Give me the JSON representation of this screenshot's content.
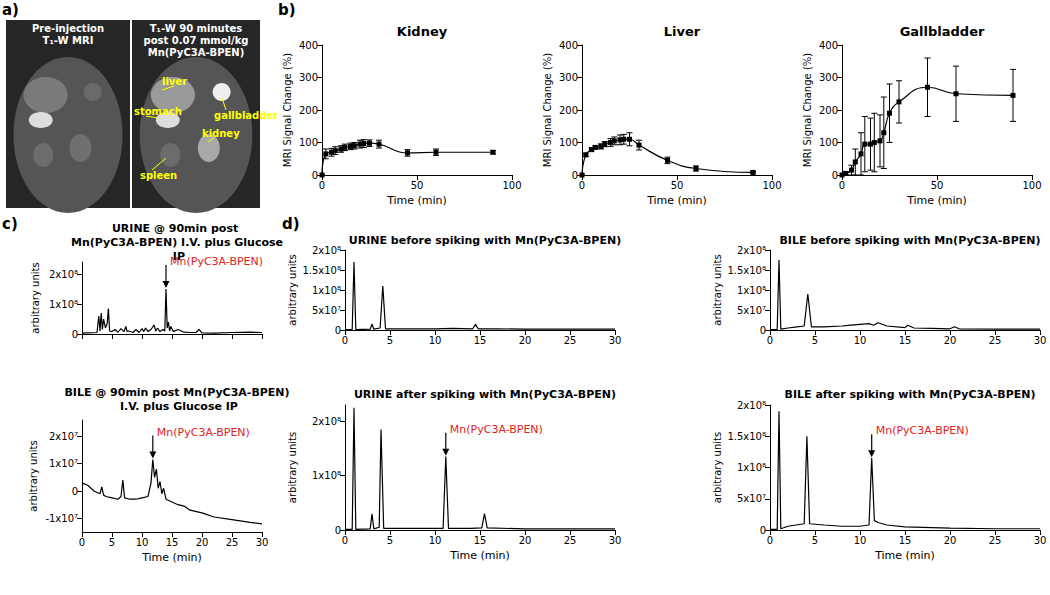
{
  "panel_labels": [
    "a)",
    "b)",
    "c)",
    "d)"
  ],
  "image": {
    "panels": [
      {
        "title_lines": [
          "Pre-injection",
          "T₁-W MRI"
        ]
      },
      {
        "title_lines": [
          "T₁-W 90 minutes",
          "post 0.07 mmol/kg",
          "Mn(PyC3A-BPEN)"
        ],
        "labels": [
          "liver",
          "stomach",
          "gallbladder",
          "kidney",
          "spleen"
        ]
      }
    ]
  },
  "chart_data": [
    {
      "type": "line",
      "title": "Kidney",
      "xlabel": "Time (min)",
      "ylabel": "MRI Signal Change (%)",
      "x": [
        0,
        2,
        5,
        7,
        10,
        12,
        15,
        17,
        20,
        22,
        25,
        30,
        45,
        60,
        90
      ],
      "values": [
        0,
        65,
        70,
        75,
        80,
        85,
        88,
        90,
        95,
        97,
        98,
        95,
        68,
        70,
        70
      ],
      "errors": [
        0,
        15,
        12,
        12,
        10,
        10,
        10,
        10,
        12,
        12,
        10,
        12,
        10,
        10,
        5
      ],
      "color": "#000000",
      "marker": "square",
      "line_style": "smooth",
      "grid": false,
      "xlim": [
        0,
        100
      ],
      "xticks": [
        0,
        50,
        100
      ],
      "ylim": [
        0,
        400
      ],
      "yticks": [
        0,
        100,
        200,
        300,
        400
      ]
    },
    {
      "type": "line",
      "title": "Liver",
      "xlabel": "Time (min)",
      "ylabel": "MRI Signal Change (%)",
      "x": [
        0,
        2,
        5,
        7,
        10,
        12,
        15,
        17,
        20,
        22,
        25,
        30,
        45,
        60,
        90
      ],
      "values": [
        0,
        62,
        78,
        85,
        88,
        95,
        100,
        105,
        108,
        110,
        110,
        92,
        45,
        20,
        8
      ],
      "errors": [
        0,
        5,
        5,
        5,
        8,
        8,
        12,
        12,
        15,
        15,
        20,
        15,
        10,
        8,
        3
      ],
      "color": "#000000",
      "marker": "square",
      "line_style": "smooth",
      "grid": false,
      "xlim": [
        0,
        100
      ],
      "xticks": [
        0,
        50,
        100
      ],
      "ylim": [
        0,
        400
      ],
      "yticks": [
        0,
        100,
        200,
        300,
        400
      ]
    },
    {
      "type": "line",
      "title": "Gallbladder",
      "xlabel": "Time (min)",
      "ylabel": "MRI Signal Change (%)",
      "x": [
        0,
        2,
        5,
        7,
        10,
        12,
        15,
        17,
        20,
        22,
        25,
        30,
        45,
        60,
        90
      ],
      "values": [
        0,
        5,
        15,
        40,
        65,
        95,
        95,
        100,
        105,
        130,
        190,
        225,
        270,
        250,
        245
      ],
      "errors": [
        0,
        5,
        15,
        40,
        65,
        85,
        80,
        90,
        80,
        110,
        90,
        65,
        90,
        85,
        80
      ],
      "color": "#000000",
      "marker": "square",
      "line_style": "smooth",
      "grid": false,
      "xlim": [
        0,
        100
      ],
      "xticks": [
        0,
        50,
        100
      ],
      "ylim": [
        0,
        400
      ],
      "yticks": [
        0,
        100,
        200,
        300,
        400
      ]
    },
    {
      "type": "line",
      "title": "URINE @ 90min post Mn(PyC3A-BPEN) I.V. plus Glucose IP",
      "ylabel": "arbitrary units",
      "x": [
        0,
        2.5,
        2.8,
        3.0,
        3.2,
        3.4,
        3.6,
        3.9,
        4.2,
        4.4,
        4.6,
        5,
        5.5,
        6,
        6.5,
        7,
        7.3,
        7.5,
        7.8,
        8.5,
        9,
        9.5,
        10,
        10.3,
        10.6,
        11,
        11.5,
        12,
        12.3,
        12.6,
        13,
        13.5,
        13.8,
        14,
        14.2,
        14.4,
        14.6,
        14.8,
        15.2,
        16,
        17,
        18,
        19,
        19.5,
        20,
        22,
        25,
        28,
        30
      ],
      "values": [
        3000000.0,
        5000000.0,
        60000000.0,
        10000000.0,
        70000000.0,
        15000000.0,
        50000000.0,
        20000000.0,
        35000000.0,
        85000000.0,
        10000000.0,
        8000000.0,
        15000000.0,
        6000000.0,
        18000000.0,
        8000000.0,
        25000000.0,
        9000000.0,
        10000000.0,
        5000000.0,
        15000000.0,
        5000000.0,
        18000000.0,
        8000000.0,
        20000000.0,
        8000000.0,
        15000000.0,
        30000000.0,
        10000000.0,
        20000000.0,
        8000000.0,
        15000000.0,
        10000000.0,
        150000000.0,
        20000000.0,
        40000000.0,
        10000000.0,
        25000000.0,
        8000000.0,
        15000000.0,
        6000000.0,
        5000000.0,
        5000000.0,
        15000000.0,
        4000000.0,
        3000000.0,
        5000000.0,
        6000000.0,
        5000000.0
      ],
      "color": "#000000",
      "marker": "none",
      "line_style": "solid",
      "grid": false,
      "tick_labels": "y",
      "xlim": [
        0,
        30
      ],
      "xticks": [
        0,
        5,
        10,
        15,
        20,
        25,
        30
      ],
      "ylim": [
        0,
        240000000.0
      ],
      "yticks": [
        0,
        {
          "value": 100000000.0,
          "label": "1x10⁸"
        },
        {
          "value": 200000000.0,
          "label": "2x10⁸"
        }
      ],
      "annotations": [
        {
          "text": "Mn(PyC3A-BPEN)",
          "x": 14,
          "y": 150000000.0,
          "color": "#e3211c"
        }
      ]
    },
    {
      "type": "line",
      "title": "BILE @ 90min post Mn(PyC3A-BPEN) I.V. plus Glucose IP",
      "xlabel": "Time (min)",
      "ylabel": "arbitrary units",
      "x": [
        0,
        1,
        2,
        3,
        3.3,
        3.6,
        4,
        5,
        6,
        6.5,
        6.8,
        7.1,
        8,
        9,
        10,
        11,
        11.5,
        11.8,
        12.1,
        12.4,
        12.7,
        13,
        13.3,
        13.6,
        14,
        15,
        16,
        17,
        18,
        20,
        22,
        25,
        28,
        30
      ],
      "values": [
        3000000.0,
        2000000.0,
        0,
        -1000000.0,
        1500000.0,
        -1500000.0,
        -2000000.0,
        -2500000.0,
        -3000000.0,
        -2000000.0,
        4000000.0,
        -2500000.0,
        -3000000.0,
        -3000000.0,
        -2500000.0,
        -2000000.0,
        3000000.0,
        11500000.0,
        5000000.0,
        8000000.0,
        1000000.0,
        3500000.0,
        -1000000.0,
        1000000.0,
        -3000000.0,
        -4000000.0,
        -5000000.0,
        -5500000.0,
        -7000000.0,
        -8000000.0,
        -9500000.0,
        -10500000.0,
        -11500000.0,
        -12000000.0
      ],
      "color": "#000000",
      "marker": "none",
      "line_style": "solid",
      "grid": false,
      "xlim": [
        0,
        30
      ],
      "xticks": [
        0,
        5,
        10,
        15,
        20,
        25,
        30
      ],
      "ylim": [
        -15000000.0,
        26000000.0
      ],
      "yticks": [
        {
          "value": -10000000.0,
          "label": "-1x10⁷"
        },
        0,
        {
          "value": 10000000.0,
          "label": "1x10⁷"
        },
        {
          "value": 20000000.0,
          "label": "2x10⁷"
        }
      ],
      "annotations": [
        {
          "text": "Mn(PyC3A-BPEN)",
          "x": 11.8,
          "y": 11500000.0,
          "color": "#e3211c"
        }
      ]
    },
    {
      "type": "line",
      "title": "URINE before spiking with Mn(PyC3A-BPEN)",
      "ylabel": "arbitrary units",
      "x": [
        0,
        0.8,
        1,
        1.2,
        2.8,
        3,
        3.2,
        3.9,
        4.2,
        4.5,
        8,
        10,
        12,
        14.2,
        14.5,
        14.8,
        17,
        20,
        25,
        30
      ],
      "values": [
        1000000.0,
        1000000.0,
        170000000.0,
        1000000.0,
        2000000.0,
        15000000.0,
        2000000.0,
        5000000.0,
        110000000.0,
        3000000.0,
        3000000.0,
        3000000.0,
        4000000.0,
        3000000.0,
        14000000.0,
        3000000.0,
        3000000.0,
        2000000.0,
        2000000.0,
        2000000.0
      ],
      "color": "#000000",
      "marker": "none",
      "line_style": "solid",
      "grid": false,
      "xlim": [
        0,
        30
      ],
      "xticks": [
        0,
        5,
        10,
        15,
        20,
        25,
        30
      ],
      "ylim": [
        0,
        200000000.0
      ],
      "yticks": [
        0,
        {
          "value": 50000000.0,
          "label": "5x10⁷"
        },
        {
          "value": 100000000.0,
          "label": "1x10⁸"
        },
        {
          "value": 150000000.0,
          "label": "1.5x10⁸"
        },
        {
          "value": 200000000.0,
          "label": "2x10⁸"
        }
      ]
    },
    {
      "type": "line",
      "title": "URINE after spiking with Mn(PyC3A-BPEN)",
      "xlabel": "Time (min)",
      "ylabel": "arbitrary units",
      "x": [
        0,
        0.8,
        1,
        1.2,
        2.8,
        3,
        3.2,
        3.8,
        4,
        4.3,
        8,
        10.9,
        11.2,
        11.5,
        14,
        15.2,
        15.5,
        15.8,
        20,
        25,
        30
      ],
      "values": [
        1000000.0,
        1000000.0,
        225000000.0,
        1000000.0,
        2000000.0,
        30000000.0,
        2000000.0,
        5000000.0,
        185000000.0,
        3000000.0,
        3000000.0,
        3000000.0,
        135000000.0,
        3000000.0,
        3000000.0,
        4000000.0,
        30000000.0,
        4000000.0,
        2000000.0,
        2000000.0,
        2000000.0
      ],
      "color": "#000000",
      "marker": "none",
      "line_style": "solid",
      "grid": false,
      "xlim": [
        0,
        30
      ],
      "xticks": [
        0,
        5,
        10,
        15,
        20,
        25,
        30
      ],
      "ylim": [
        0,
        230000000.0
      ],
      "yticks": [
        0,
        {
          "value": 100000000.0,
          "label": "1x10⁸"
        },
        {
          "value": 200000000.0,
          "label": "2x10⁸"
        }
      ],
      "annotations": [
        {
          "text": "Mn(PyC3A-BPEN)",
          "x": 11.2,
          "y": 135000000.0,
          "color": "#e3211c"
        }
      ]
    },
    {
      "type": "line",
      "title": "BILE before spiking with Mn(PyC3A-BPEN)",
      "ylabel": "arbitrary units",
      "x": [
        0,
        0.8,
        1,
        1.2,
        2,
        3,
        3.8,
        4.2,
        4.6,
        6,
        8,
        9,
        10,
        11,
        11.5,
        12,
        13,
        15,
        15.3,
        16,
        18,
        20,
        20.5,
        21,
        25,
        30
      ],
      "values": [
        1000000.0,
        1000000.0,
        175000000.0,
        2000000.0,
        5000000.0,
        8000000.0,
        10000000.0,
        90000000.0,
        8000000.0,
        8000000.0,
        10000000.0,
        12000000.0,
        14000000.0,
        16000000.0,
        12000000.0,
        18000000.0,
        10000000.0,
        6000000.0,
        12000000.0,
        5000000.0,
        4000000.0,
        3000000.0,
        8000000.0,
        3000000.0,
        2000000.0,
        2000000.0
      ],
      "color": "#000000",
      "marker": "none",
      "line_style": "solid",
      "grid": false,
      "xlim": [
        0,
        30
      ],
      "xticks": [
        0,
        5,
        10,
        15,
        20,
        25,
        30
      ],
      "ylim": [
        0,
        200000000.0
      ],
      "yticks": [
        0,
        {
          "value": 50000000.0,
          "label": "5x10⁷"
        },
        {
          "value": 100000000.0,
          "label": "1x10⁸"
        },
        {
          "value": 150000000.0,
          "label": "1.5x10⁸"
        },
        {
          "value": 200000000.0,
          "label": "2x10⁸"
        }
      ]
    },
    {
      "type": "line",
      "title": "BILE after spiking with Mn(PyC3A-BPEN)",
      "xlabel": "Time (min)",
      "ylabel": "arbitrary units",
      "x": [
        0,
        0.8,
        1,
        1.2,
        2,
        3.8,
        4.1,
        4.4,
        6,
        8,
        10,
        11,
        11.3,
        11.6,
        12,
        13,
        15,
        20,
        25,
        30
      ],
      "values": [
        1000000.0,
        1000000.0,
        190000000.0,
        2000000.0,
        6000000.0,
        10000000.0,
        150000000.0,
        10000000.0,
        8000000.0,
        6000000.0,
        6000000.0,
        8000000.0,
        115000000.0,
        15000000.0,
        12000000.0,
        8000000.0,
        5000000.0,
        3000000.0,
        2000000.0,
        2000000.0
      ],
      "color": "#000000",
      "marker": "none",
      "line_style": "solid",
      "grid": false,
      "xlim": [
        0,
        30
      ],
      "xticks": [
        0,
        5,
        10,
        15,
        20,
        25,
        30
      ],
      "ylim": [
        0,
        200000000.0
      ],
      "yticks": [
        0,
        {
          "value": 50000000.0,
          "label": "5x10⁷"
        },
        {
          "value": 100000000.0,
          "label": "1x10⁸"
        },
        {
          "value": 150000000.0,
          "label": "1.5x10⁸"
        },
        {
          "value": 200000000.0,
          "label": "2x10⁸"
        }
      ],
      "annotations": [
        {
          "text": "Mn(PyC3A-BPEN)",
          "x": 11.3,
          "y": 115000000.0,
          "color": "#e3211c"
        }
      ]
    }
  ]
}
